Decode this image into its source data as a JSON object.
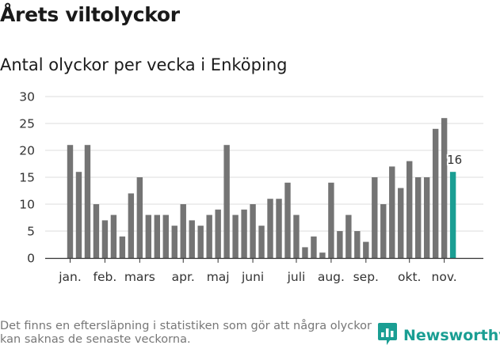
{
  "header": {
    "title": "Årets viltolyckor",
    "subtitle": "Antal olyckor per vecka i Enköping"
  },
  "footer": {
    "note": "Det finns en eftersläpning i statistiken som gör att några olyckor kan saknas de senaste veckorna.",
    "brand": "Newsworthy"
  },
  "colors": {
    "bar": "#747474",
    "highlight": "#1a9e93",
    "grid": "#dddddd",
    "axis": "#333333"
  },
  "chart_data": {
    "type": "bar",
    "title": "Antal olyckor per vecka i Enköping",
    "xlabel": "",
    "ylabel": "",
    "ylim": [
      0,
      30
    ],
    "yticks": [
      0,
      5,
      10,
      15,
      20,
      25,
      30
    ],
    "grid": true,
    "values": [
      21,
      16,
      21,
      10,
      7,
      8,
      4,
      12,
      15,
      8,
      8,
      8,
      6,
      10,
      7,
      6,
      8,
      9,
      21,
      8,
      9,
      10,
      6,
      11,
      11,
      14,
      8,
      2,
      4,
      1,
      14,
      5,
      8,
      5,
      3,
      15,
      10,
      17,
      13,
      18,
      15,
      15,
      24,
      26,
      16
    ],
    "highlight_index": 44,
    "highlight_label": "16",
    "month_labels": [
      {
        "label": "jan.",
        "at_week": 0
      },
      {
        "label": "feb.",
        "at_week": 4
      },
      {
        "label": "mars",
        "at_week": 8
      },
      {
        "label": "apr.",
        "at_week": 13
      },
      {
        "label": "maj",
        "at_week": 17
      },
      {
        "label": "juni",
        "at_week": 21
      },
      {
        "label": "juli",
        "at_week": 26
      },
      {
        "label": "aug.",
        "at_week": 30
      },
      {
        "label": "sep.",
        "at_week": 34
      },
      {
        "label": "okt.",
        "at_week": 39
      },
      {
        "label": "nov.",
        "at_week": 43
      }
    ]
  }
}
